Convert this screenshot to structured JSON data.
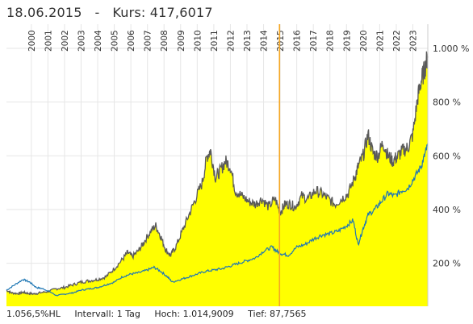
{
  "header": {
    "date": "18.06.2015",
    "separator": "-",
    "kurs_label": "Kurs:",
    "kurs_value": "417,6017"
  },
  "footer": {
    "scale": "1.056,5%HL",
    "interval": "Intervall: 1 Tag",
    "high": "Hoch: 1.014,9009",
    "low": "Tief: 87,7565"
  },
  "colors": {
    "area_fill": "#ffff00",
    "area_line": "#5a5a5a",
    "compare_line": "#1f77b4",
    "cursor_line": "#f5a623",
    "grid": "#e6e6e6"
  },
  "chart_data": {
    "type": "area",
    "x_tick_labels": [
      "2000",
      "2001",
      "2002",
      "2003",
      "2004",
      "2005",
      "2006",
      "2007",
      "2008",
      "2009",
      "2010",
      "2011",
      "2012",
      "2013",
      "2014",
      "2015",
      "2016",
      "2017",
      "2018",
      "2019",
      "2020",
      "2021",
      "2022",
      "2023"
    ],
    "y_tick_labels": [
      "200 %",
      "400 %",
      "600 %",
      "800 %",
      "1.000 %"
    ],
    "y_ticks": [
      200,
      400,
      600,
      800,
      1000
    ],
    "ylim": [
      40,
      1090
    ],
    "xlim": [
      1999.0,
      2024.4
    ],
    "cursor_x": 2015.46,
    "grid": true,
    "series": [
      {
        "style": "area",
        "x": [
          1999.0,
          1999.3,
          1999.7,
          2000.0,
          2000.3,
          2000.7,
          2001.0,
          2001.5,
          2002.0,
          2002.5,
          2003.0,
          2003.5,
          2004.0,
          2004.5,
          2005.0,
          2005.5,
          2006.0,
          2006.3,
          2006.6,
          2007.0,
          2007.3,
          2007.7,
          2008.0,
          2008.3,
          2008.6,
          2008.9,
          2009.2,
          2009.6,
          2010.0,
          2010.4,
          2010.8,
          2011.1,
          2011.3,
          2011.6,
          2011.9,
          2012.2,
          2012.5,
          2012.8,
          2013.2,
          2013.6,
          2014.0,
          2014.4,
          2014.8,
          2015.2,
          2015.5,
          2015.8,
          2016.1,
          2016.4,
          2016.8,
          2017.2,
          2017.6,
          2018.0,
          2018.4,
          2018.8,
          2019.2,
          2019.6,
          2020.0,
          2020.2,
          2020.5,
          2020.8,
          2021.1,
          2021.4,
          2021.7,
          2022.0,
          2022.3,
          2022.6,
          2022.9,
          2023.2,
          2023.5,
          2023.8,
          2024.0,
          2024.2,
          2024.4
        ],
        "y": [
          100,
          90,
          87,
          92,
          88,
          86,
          90,
          95,
          105,
          110,
          120,
          130,
          135,
          140,
          150,
          180,
          215,
          240,
          225,
          250,
          280,
          320,
          340,
          300,
          250,
          230,
          260,
          320,
          380,
          440,
          500,
          600,
          620,
          520,
          545,
          580,
          560,
          470,
          450,
          430,
          420,
          440,
          410,
          440,
          390,
          420,
          420,
          410,
          450,
          440,
          470,
          460,
          440,
          420,
          440,
          460,
          520,
          560,
          600,
          680,
          610,
          600,
          650,
          600,
          580,
          600,
          620,
          630,
          680,
          820,
          880,
          920,
          970
        ],
        "name": ""
      },
      {
        "style": "line",
        "x": [
          1999.0,
          1999.5,
          2000.0,
          2000.4,
          2000.8,
          2001.2,
          2001.6,
          2002.0,
          2002.5,
          2003.0,
          2003.5,
          2004.0,
          2004.5,
          2005.0,
          2005.5,
          2006.0,
          2006.5,
          2007.0,
          2007.5,
          2007.9,
          2008.3,
          2008.7,
          2009.0,
          2009.5,
          2010.0,
          2010.5,
          2011.0,
          2011.5,
          2012.0,
          2012.5,
          2013.0,
          2013.5,
          2014.0,
          2014.5,
          2015.0,
          2015.3,
          2015.6,
          2016.0,
          2016.5,
          2017.0,
          2017.5,
          2018.0,
          2018.5,
          2019.0,
          2019.5,
          2019.9,
          2020.2,
          2020.5,
          2020.8,
          2021.2,
          2021.6,
          2022.0,
          2022.4,
          2022.8,
          2023.2,
          2023.6,
          2024.0,
          2024.2,
          2024.4
        ],
        "y": [
          100,
          120,
          140,
          130,
          110,
          105,
          95,
          80,
          85,
          90,
          100,
          105,
          110,
          120,
          130,
          150,
          160,
          165,
          175,
          185,
          170,
          150,
          130,
          140,
          150,
          160,
          170,
          175,
          180,
          190,
          200,
          210,
          220,
          245,
          260,
          245,
          235,
          230,
          260,
          270,
          290,
          305,
          310,
          320,
          340,
          360,
          270,
          330,
          380,
          400,
          430,
          460,
          450,
          470,
          480,
          520,
          560,
          600,
          640
        ],
        "name": ""
      }
    ]
  }
}
